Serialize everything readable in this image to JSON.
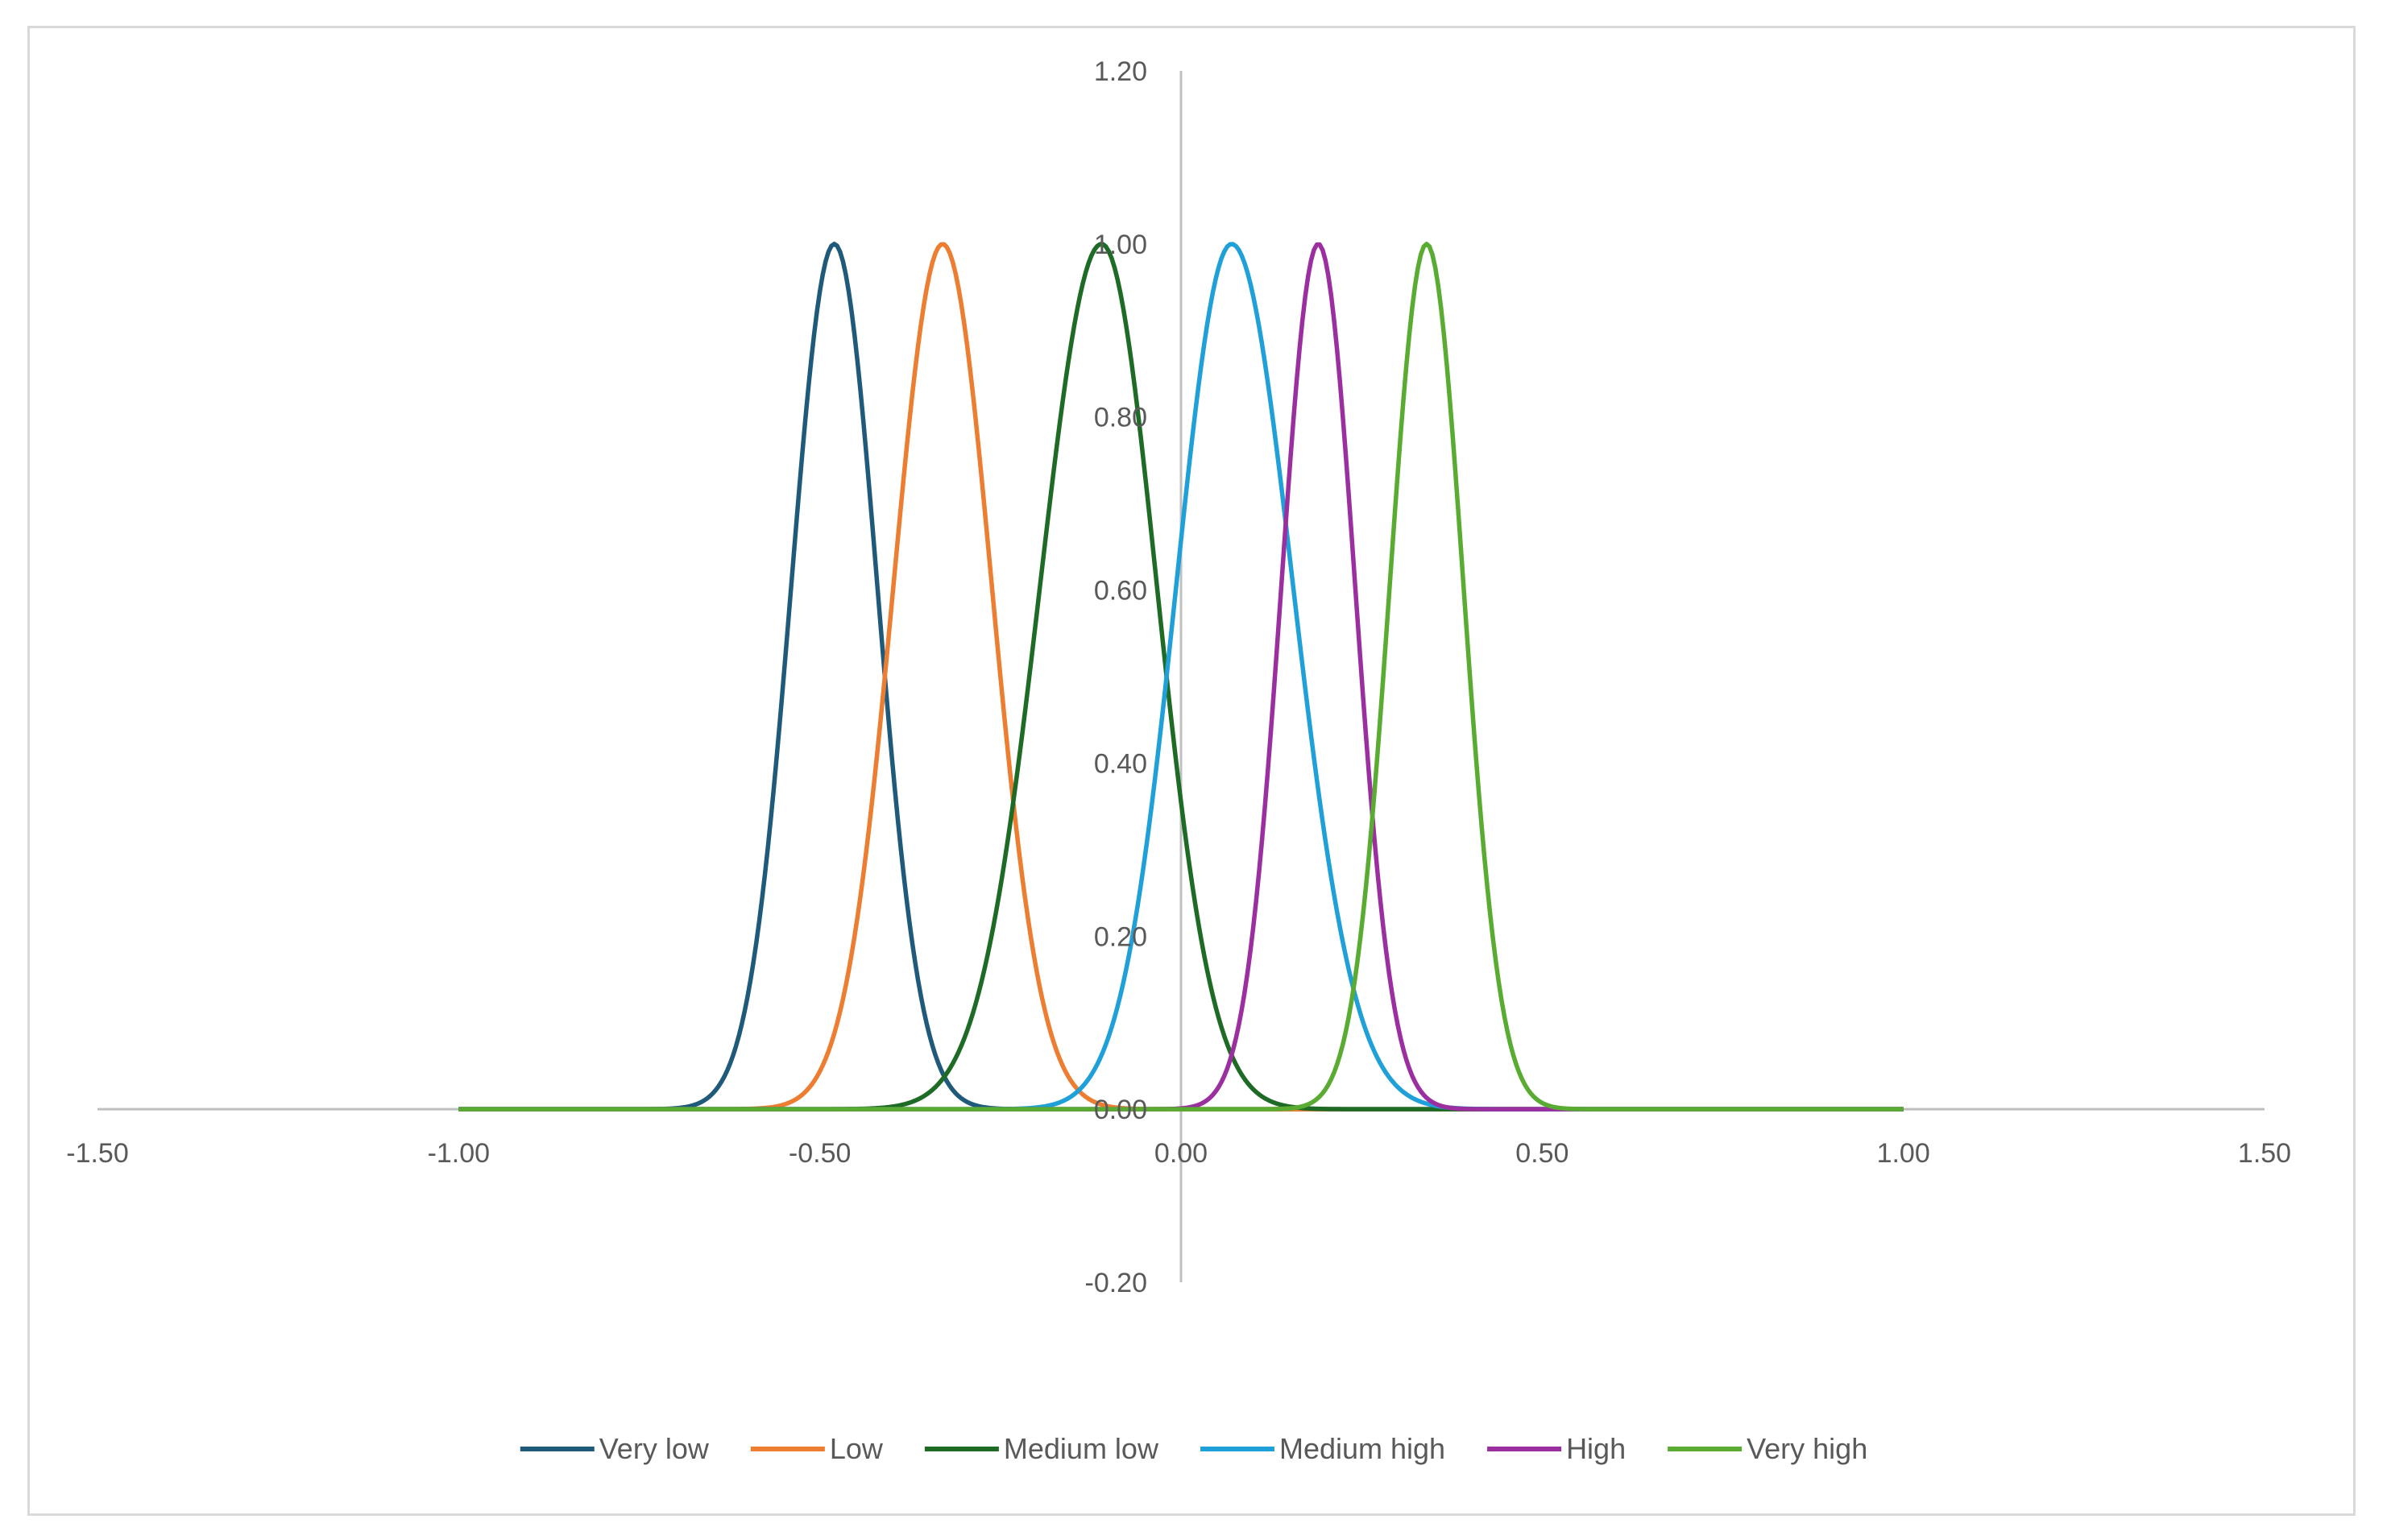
{
  "chart_data": {
    "type": "line",
    "title": "",
    "xlabel": "",
    "ylabel": "",
    "xlim": [
      -1.5,
      1.5
    ],
    "ylim": [
      -0.2,
      1.2
    ],
    "x_ticks": [
      "-1.50",
      "-1.00",
      "-0.50",
      "0.00",
      "0.50",
      "1.00",
      "1.50"
    ],
    "x_tick_values": [
      -1.5,
      -1.0,
      -0.5,
      0.0,
      0.5,
      1.0,
      1.5
    ],
    "y_ticks": [
      "-0.20",
      "0.00",
      "0.20",
      "0.40",
      "0.60",
      "0.80",
      "1.00",
      "1.20"
    ],
    "y_tick_values": [
      -0.2,
      0.0,
      0.2,
      0.4,
      0.6,
      0.8,
      1.0,
      1.2
    ],
    "grid": false,
    "legend_position": "bottom",
    "x_range_plotted": [
      -1.0,
      1.0
    ],
    "series": [
      {
        "name": "Very low",
        "color": "#1f5a7a",
        "peak_x": -0.48,
        "peak_y": 1.0,
        "x_at_half_height": [
          -0.55,
          -0.41
        ]
      },
      {
        "name": "Low",
        "color": "#ed7d31",
        "peak_x": -0.33,
        "peak_y": 1.0,
        "x_at_half_height": [
          -0.41,
          -0.25
        ]
      },
      {
        "name": "Medium low",
        "color": "#1e6b26",
        "peak_x": -0.11,
        "peak_y": 1.0,
        "x_at_half_height": [
          -0.21,
          -0.02
        ]
      },
      {
        "name": "Medium high",
        "color": "#1fa0d8",
        "peak_x": 0.07,
        "peak_y": 1.0,
        "x_at_half_height": [
          -0.02,
          0.17
        ]
      },
      {
        "name": "High",
        "color": "#9b2fa0",
        "peak_x": 0.19,
        "peak_y": 1.0,
        "x_at_half_height": [
          0.13,
          0.25
        ]
      },
      {
        "name": "Very high",
        "color": "#5aab32",
        "peak_x": 0.34,
        "peak_y": 1.0,
        "x_at_half_height": [
          0.28,
          0.4
        ]
      }
    ]
  }
}
